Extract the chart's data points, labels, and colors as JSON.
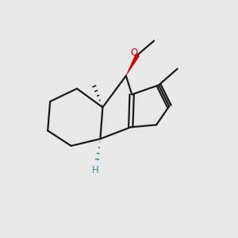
{
  "bg_color": "#e8e8e8",
  "bond_color": "#1a1a1a",
  "oxygen_color": "#cc0000",
  "hydrogen_color": "#3d8f9a",
  "line_width": 1.6,
  "figsize": [
    3.0,
    3.0
  ],
  "dpi": 100,
  "xlim": [
    0.0,
    10.0
  ],
  "ylim": [
    0.5,
    10.0
  ]
}
